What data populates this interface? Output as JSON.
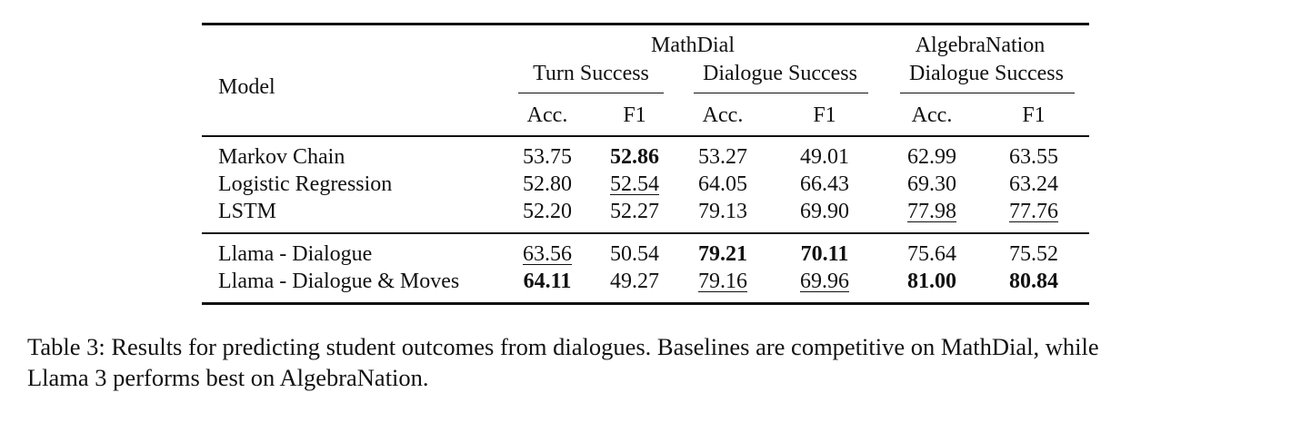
{
  "table": {
    "header": {
      "model": "Model",
      "groups": [
        {
          "label": "MathDial",
          "subgroups": [
            "Turn Success",
            "Dialogue Success"
          ]
        },
        {
          "label": "AlgebraNation",
          "subgroups": [
            "Dialogue Success"
          ]
        }
      ],
      "columns": [
        "Acc.",
        "F1",
        "Acc.",
        "F1",
        "Acc.",
        "F1"
      ]
    },
    "sections": [
      {
        "rows": [
          {
            "model": "Markov Chain",
            "cells": [
              "53.75",
              {
                "text": "52.86",
                "style": "bold"
              },
              "53.27",
              "49.01",
              "62.99",
              "63.55"
            ]
          },
          {
            "model": "Logistic Regression",
            "cells": [
              "52.80",
              {
                "text": "52.54",
                "style": "underline"
              },
              "64.05",
              "66.43",
              "69.30",
              "63.24"
            ]
          },
          {
            "model": "LSTM",
            "cells": [
              "52.20",
              "52.27",
              "79.13",
              "69.90",
              {
                "text": "77.98",
                "style": "underline"
              },
              {
                "text": "77.76",
                "style": "underline"
              }
            ]
          }
        ]
      },
      {
        "rows": [
          {
            "model": "Llama - Dialogue",
            "cells": [
              {
                "text": "63.56",
                "style": "underline"
              },
              "50.54",
              {
                "text": "79.21",
                "style": "bold"
              },
              {
                "text": "70.11",
                "style": "bold"
              },
              "75.64",
              "75.52"
            ]
          },
          {
            "model": "Llama - Dialogue & Moves",
            "cells": [
              {
                "text": "64.11",
                "style": "bold"
              },
              "49.27",
              {
                "text": "79.16",
                "style": "underline"
              },
              {
                "text": "69.96",
                "style": "underline"
              },
              {
                "text": "81.00",
                "style": "bold"
              },
              {
                "text": "80.84",
                "style": "bold"
              }
            ]
          }
        ]
      }
    ]
  },
  "caption": [
    "Table 3: Results for predicting student outcomes from dialogues. Baselines are competitive on MathDial, while",
    "Llama 3 performs best on AlgebraNation."
  ]
}
